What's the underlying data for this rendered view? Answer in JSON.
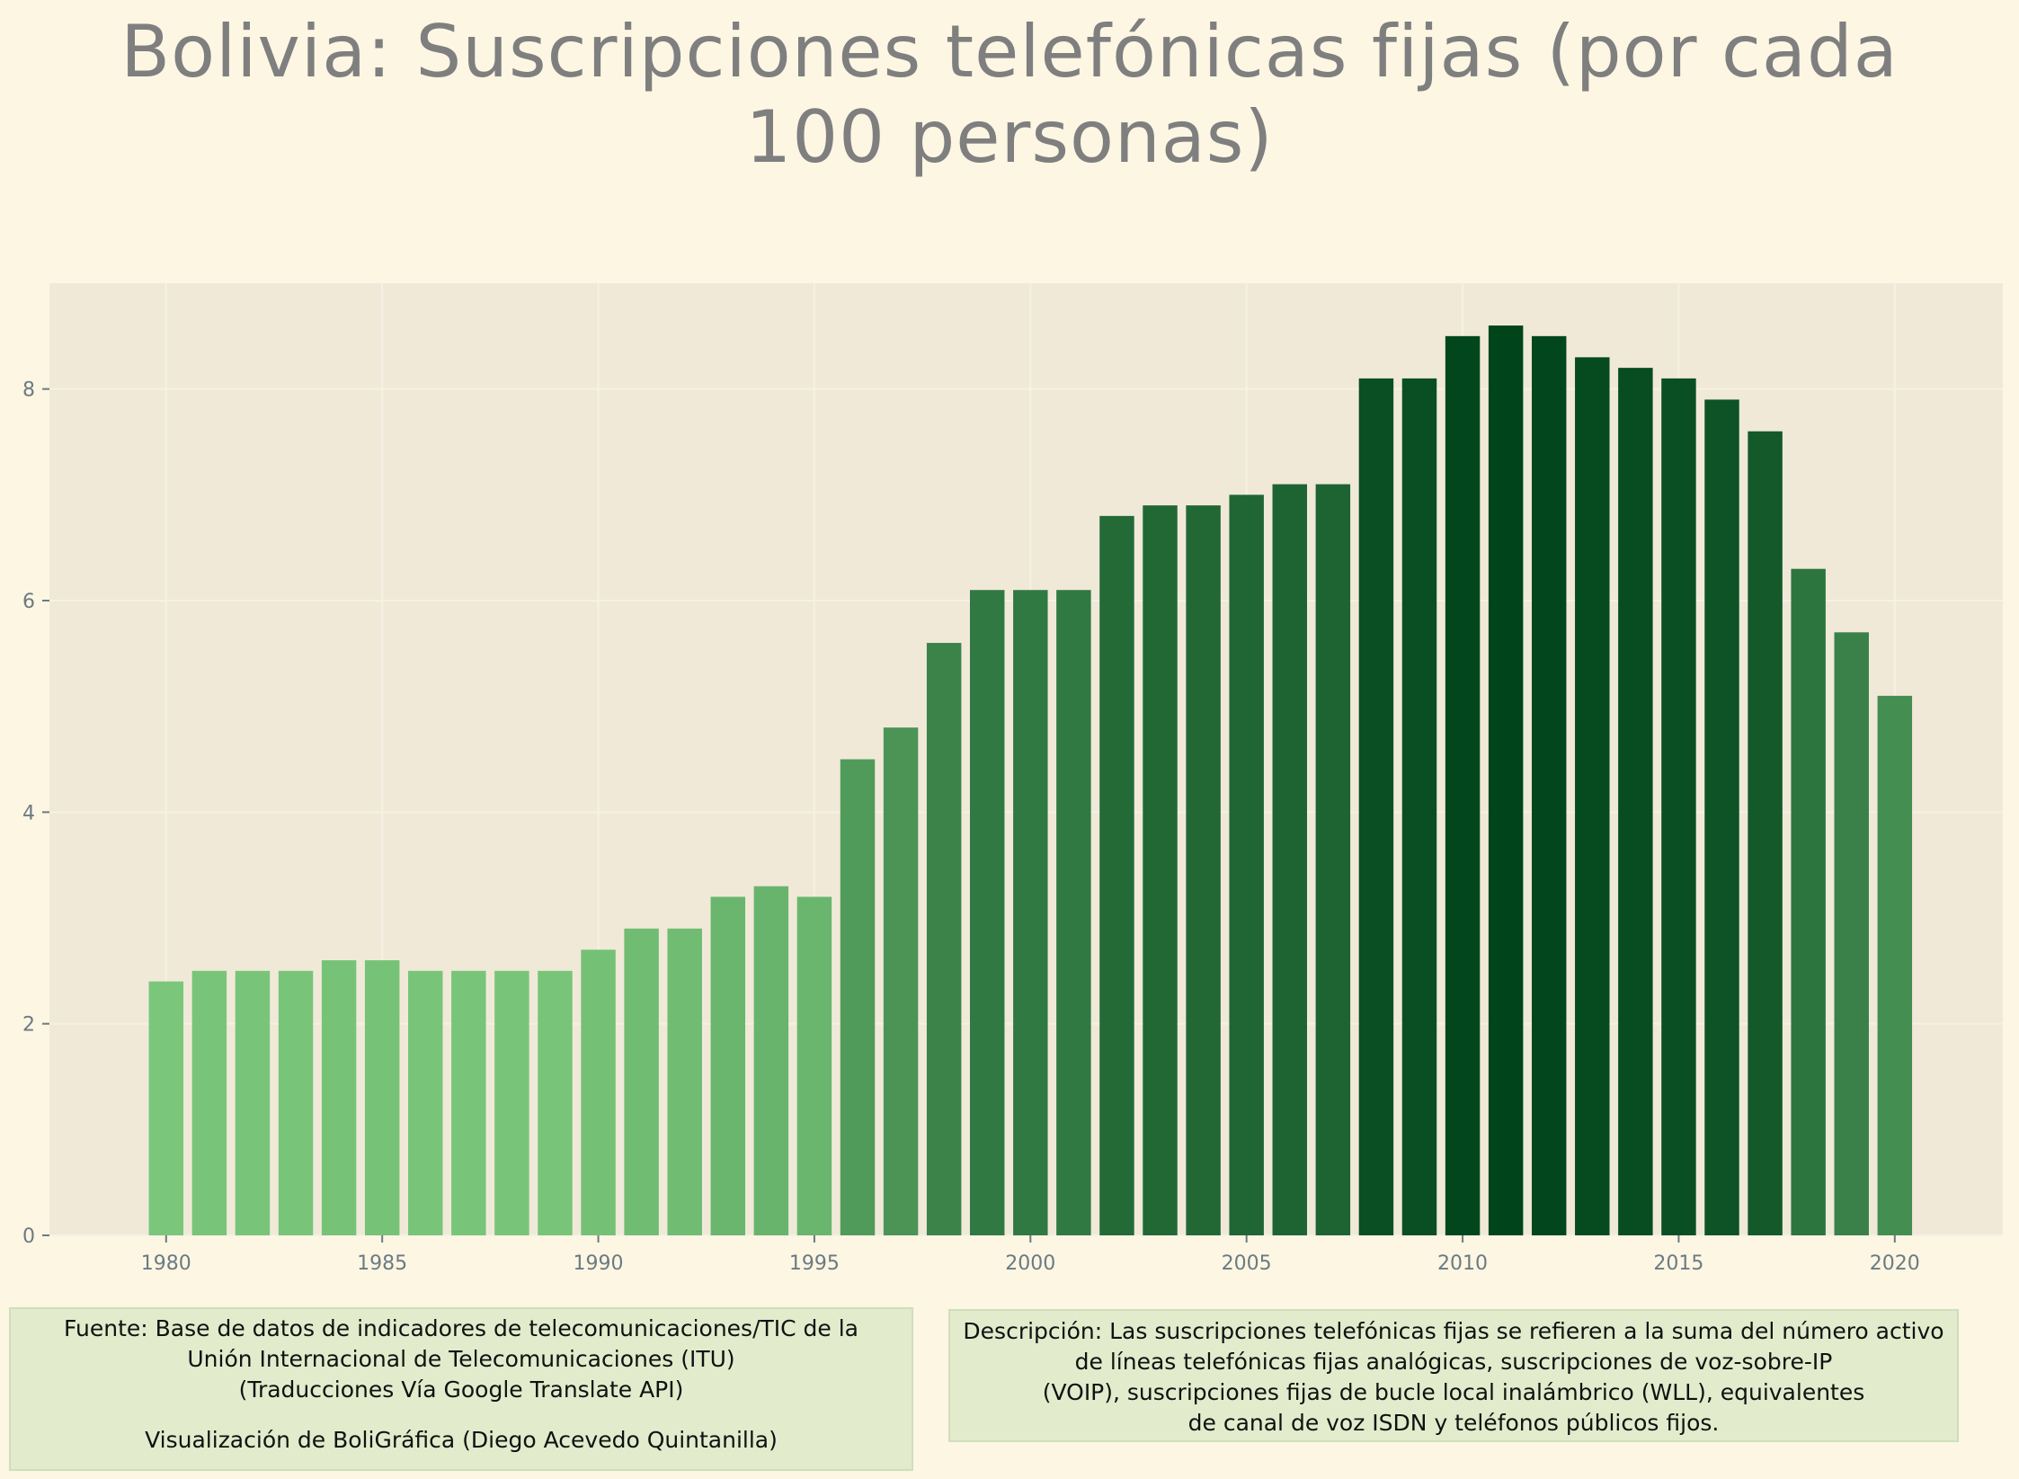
{
  "chart_data": {
    "type": "bar",
    "title_lines": [
      "Bolivia:  Suscripciones telefónicas fijas (por cada",
      "100 personas)"
    ],
    "xlabel": "",
    "ylabel": "",
    "categories": [
      1980,
      1981,
      1982,
      1983,
      1984,
      1985,
      1986,
      1987,
      1988,
      1989,
      1990,
      1991,
      1992,
      1993,
      1994,
      1995,
      1996,
      1997,
      1998,
      1999,
      2000,
      2001,
      2002,
      2003,
      2004,
      2005,
      2006,
      2007,
      2008,
      2009,
      2010,
      2011,
      2012,
      2013,
      2014,
      2015,
      2016,
      2017,
      2018,
      2019,
      2020
    ],
    "values": [
      2.4,
      2.5,
      2.5,
      2.5,
      2.6,
      2.6,
      2.5,
      2.5,
      2.5,
      2.5,
      2.7,
      2.9,
      2.9,
      3.2,
      3.3,
      3.2,
      4.5,
      4.8,
      5.6,
      6.1,
      6.1,
      6.1,
      6.8,
      6.9,
      6.9,
      7.0,
      7.1,
      7.1,
      8.1,
      8.1,
      8.5,
      8.6,
      8.5,
      8.3,
      8.2,
      8.1,
      7.9,
      7.6,
      6.3,
      5.7,
      5.1
    ],
    "x_ticks": [
      1980,
      1985,
      1990,
      1995,
      2000,
      2005,
      2010,
      2015,
      2020
    ],
    "y_ticks": [
      0,
      2,
      4,
      6,
      8
    ],
    "xlim": [
      1977.3,
      2022.5
    ],
    "ylim": [
      0,
      9.0
    ],
    "grid": true,
    "legend": "none",
    "color_scale": "greens, darker for higher values"
  },
  "colors": {
    "page_background": "#fdf6e3",
    "plot_background": "#f0e9d8",
    "grid": "#f6f1e4",
    "title": "#7f7f7f",
    "tick_text": "#6b7b83",
    "note_background": "#e2ebcc",
    "note_border": "#cfdfba",
    "bar_light": "#7ac77b",
    "bar_dark": "#00441b"
  },
  "notes": {
    "source": [
      "Fuente: Base de datos de indicadores de telecomunicaciones/TIC de la",
      "Unión Internacional de Telecomunicaciones (ITU)",
      "(Traducciones Vía Google Translate API)"
    ],
    "credit": "Visualización de BoliGráfica (Diego Acevedo Quintanilla)",
    "description": [
      "Descripción: Las suscripciones telefónicas fijas se refieren a la suma del número activo",
      "de líneas telefónicas fijas analógicas, suscripciones de voz-sobre-IP",
      "(VOIP), suscripciones fijas de bucle local inalámbrico (WLL), equivalentes",
      "de canal de voz ISDN y teléfonos públicos fijos."
    ]
  }
}
